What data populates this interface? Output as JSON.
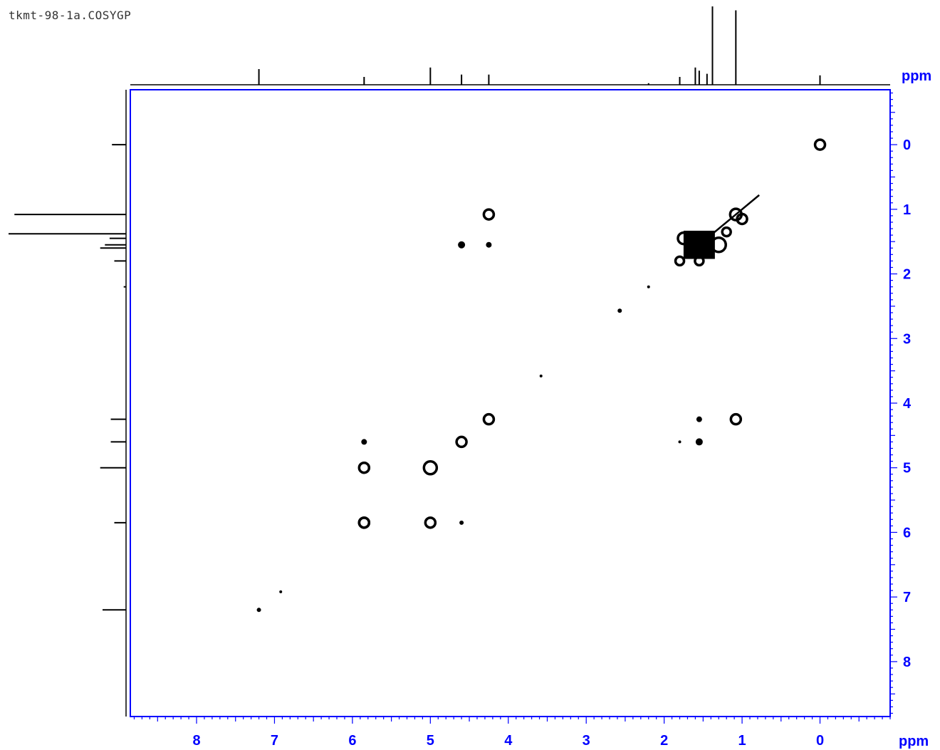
{
  "header": {
    "file_title": "tkmt-98-1a.COSYGP"
  },
  "colors": {
    "axis": "#0000ff",
    "contour": "#000000",
    "projection": "#000000"
  },
  "chart_data": {
    "type": "scatter",
    "title": "",
    "xlabel": "ppm",
    "ylabel": "ppm",
    "xlim": [
      8.85,
      -0.9
    ],
    "ylim": [
      -0.85,
      8.85
    ],
    "x_ticks": [
      8,
      7,
      6,
      5,
      4,
      3,
      2,
      1,
      0
    ],
    "y_ticks": [
      0,
      1,
      2,
      3,
      4,
      5,
      6,
      7,
      8
    ],
    "grid": false,
    "cross_peaks": [
      {
        "x": 0.0,
        "y": 0.0,
        "r": 7
      },
      {
        "x": 1.08,
        "y": 1.08,
        "r": 8
      },
      {
        "x": 1.55,
        "y": 1.55,
        "r": 22
      },
      {
        "x": 1.8,
        "y": 1.8,
        "r": 6
      },
      {
        "x": 2.2,
        "y": 2.2,
        "r": 2
      },
      {
        "x": 2.57,
        "y": 2.57,
        "r": 3
      },
      {
        "x": 3.58,
        "y": 3.58,
        "r": 2
      },
      {
        "x": 4.25,
        "y": 4.25,
        "r": 7
      },
      {
        "x": 4.6,
        "y": 4.6,
        "r": 7
      },
      {
        "x": 5.0,
        "y": 5.0,
        "r": 9
      },
      {
        "x": 5.85,
        "y": 5.85,
        "r": 7
      },
      {
        "x": 6.92,
        "y": 6.92,
        "r": 2
      },
      {
        "x": 7.2,
        "y": 7.2,
        "r": 3
      },
      {
        "x": 4.25,
        "y": 1.08,
        "r": 7
      },
      {
        "x": 4.6,
        "y": 1.55,
        "r": 5
      },
      {
        "x": 4.25,
        "y": 1.55,
        "r": 4
      },
      {
        "x": 1.08,
        "y": 4.25,
        "r": 7
      },
      {
        "x": 1.55,
        "y": 4.25,
        "r": 4
      },
      {
        "x": 1.55,
        "y": 4.6,
        "r": 5
      },
      {
        "x": 1.8,
        "y": 4.6,
        "r": 2
      },
      {
        "x": 5.85,
        "y": 4.6,
        "r": 4
      },
      {
        "x": 5.85,
        "y": 5.0,
        "r": 7
      },
      {
        "x": 5.0,
        "y": 5.85,
        "r": 7
      },
      {
        "x": 5.85,
        "y": 5.85,
        "r": 7
      },
      {
        "x": 4.6,
        "y": 5.85,
        "r": 3
      },
      {
        "x": 1.3,
        "y": 1.55,
        "r": 10
      },
      {
        "x": 1.75,
        "y": 1.45,
        "r": 8
      },
      {
        "x": 1.2,
        "y": 1.35,
        "r": 6
      },
      {
        "x": 1.0,
        "y": 1.15,
        "r": 7
      },
      {
        "x": 1.55,
        "y": 1.8,
        "r": 6
      }
    ],
    "projection_peaks": [
      {
        "ppm": 7.2,
        "h": 0.2
      },
      {
        "ppm": 5.85,
        "h": 0.1
      },
      {
        "ppm": 5.0,
        "h": 0.22
      },
      {
        "ppm": 4.6,
        "h": 0.13
      },
      {
        "ppm": 4.25,
        "h": 0.13
      },
      {
        "ppm": 2.2,
        "h": 0.02
      },
      {
        "ppm": 1.8,
        "h": 0.1
      },
      {
        "ppm": 1.6,
        "h": 0.22
      },
      {
        "ppm": 1.55,
        "h": 0.18
      },
      {
        "ppm": 1.45,
        "h": 0.14
      },
      {
        "ppm": 1.38,
        "h": 1.0
      },
      {
        "ppm": 1.08,
        "h": 0.95
      },
      {
        "ppm": 0.0,
        "h": 0.12
      }
    ]
  }
}
